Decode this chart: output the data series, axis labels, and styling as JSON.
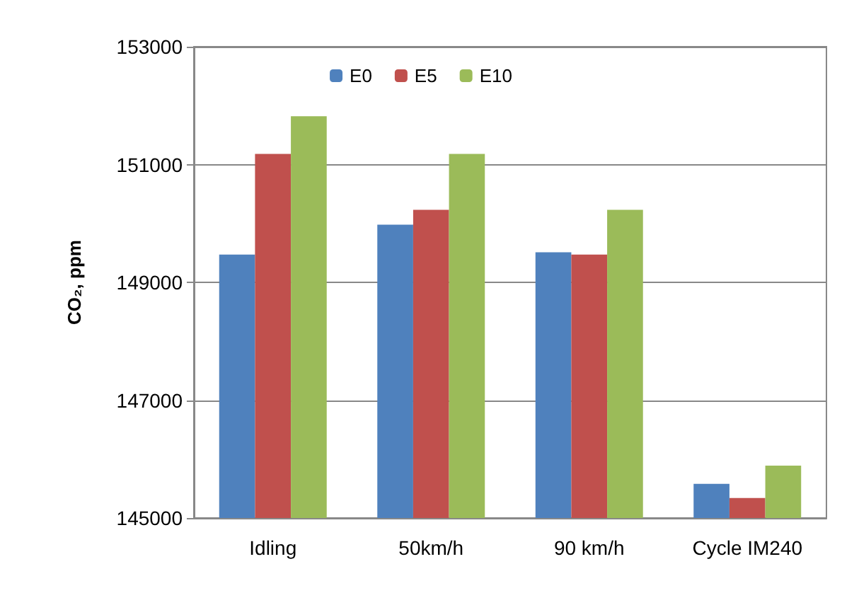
{
  "chart_data": {
    "type": "bar",
    "ylabel": "CO₂, ppm",
    "categories": [
      "Idling",
      "50km/h",
      "90 km/h",
      "Cycle IM240"
    ],
    "series": [
      {
        "name": "E0",
        "color": "#4f81bd",
        "values": [
          149470,
          149980,
          149510,
          145580
        ]
      },
      {
        "name": "E5",
        "color": "#c0504d",
        "values": [
          151180,
          150230,
          149470,
          145340
        ]
      },
      {
        "name": "E10",
        "color": "#9bbb59",
        "values": [
          151820,
          151180,
          150230,
          145890
        ]
      }
    ],
    "ylim": [
      145000,
      153000
    ],
    "yticks": [
      145000,
      147000,
      149000,
      151000,
      153000
    ],
    "grid": "y",
    "legend": "top"
  }
}
